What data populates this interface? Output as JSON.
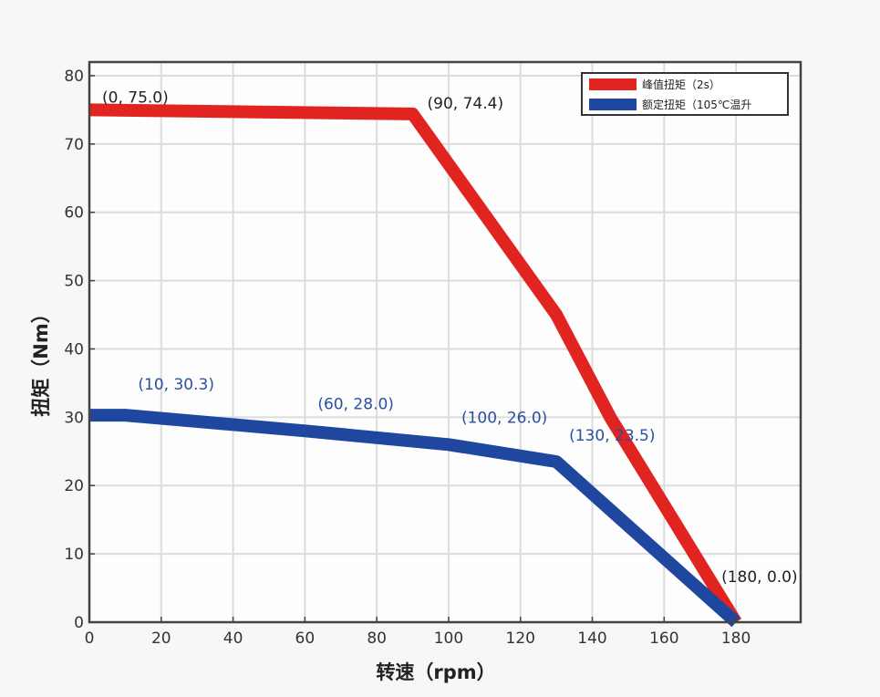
{
  "chart_data": {
    "type": "line",
    "xlabel": "转速（rpm）",
    "ylabel": "扭矩（Nm）",
    "xlim": [
      0,
      198
    ],
    "ylim": [
      0,
      82
    ],
    "xticks": [
      0,
      20,
      40,
      60,
      80,
      100,
      120,
      140,
      160,
      180
    ],
    "yticks": [
      0,
      10,
      20,
      30,
      40,
      50,
      60,
      70,
      80
    ],
    "grid": true,
    "legend_position": "top-right",
    "series": [
      {
        "name": "峰值扭矩（2s）",
        "color": "#e1241f",
        "points": [
          [
            0,
            75.0
          ],
          [
            90,
            74.4
          ],
          [
            130,
            45.0
          ],
          [
            145,
            30.0
          ],
          [
            180,
            0.0
          ]
        ]
      },
      {
        "name": "额定扭矩（105℃温升",
        "color": "#1f47a0",
        "points": [
          [
            0,
            30.3
          ],
          [
            10,
            30.3
          ],
          [
            60,
            28.0
          ],
          [
            100,
            26.0
          ],
          [
            130,
            23.5
          ],
          [
            180,
            0.0
          ]
        ]
      }
    ],
    "annotations": [
      {
        "text": "(0, 75.0)",
        "x": 0,
        "y": 75.0,
        "color": "#222222"
      },
      {
        "text": "(90, 74.4)",
        "x": 90,
        "y": 74.4,
        "color": "#222222"
      },
      {
        "text": "(180, 0.0)",
        "x": 180,
        "y": 0.0,
        "color": "#222222"
      },
      {
        "text": "(10, 30.3)",
        "x": 10,
        "y": 30.3,
        "color": "#2a4fa0"
      },
      {
        "text": "(60, 28.0)",
        "x": 60,
        "y": 28.0,
        "color": "#2a4fa0"
      },
      {
        "text": "(100, 26.0)",
        "x": 100,
        "y": 26.0,
        "color": "#2a4fa0"
      },
      {
        "text": "(130, 23.5)",
        "x": 130,
        "y": 23.5,
        "color": "#2a4fa0"
      }
    ]
  }
}
